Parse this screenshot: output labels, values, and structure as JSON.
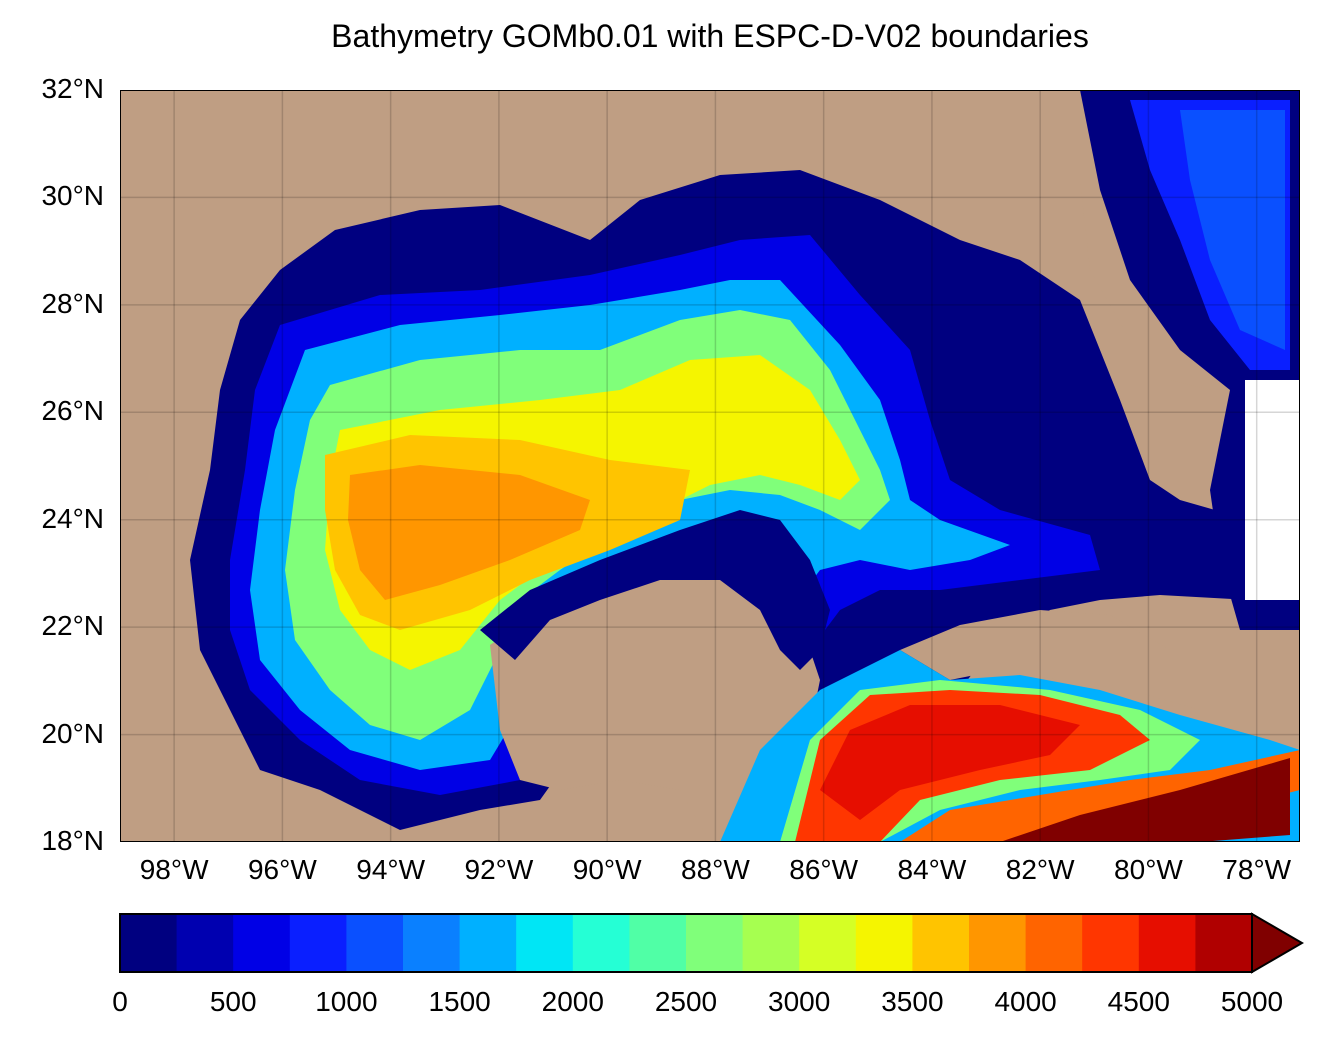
{
  "title": "Bathymetry GOMb0.01 with ESPC-D-V02 boundaries",
  "map": {
    "type": "filled-contour bathymetry map",
    "region": "Gulf of Mexico and western Caribbean",
    "lon_range": [
      -99,
      -77.2
    ],
    "lat_range": [
      18,
      32
    ],
    "lat_ticks": [
      "32°N",
      "30°N",
      "28°N",
      "26°N",
      "24°N",
      "22°N",
      "20°N",
      "18°N"
    ],
    "lon_ticks": [
      "98°W",
      "96°W",
      "94°W",
      "92°W",
      "90°W",
      "88°W",
      "86°W",
      "84°W",
      "82°W",
      "80°W",
      "78°W"
    ],
    "land_color": "#bf9e83",
    "grid": true
  },
  "colorbar": {
    "ticks": [
      "0",
      "500",
      "1000",
      "1500",
      "2000",
      "2500",
      "3000",
      "3500",
      "4000",
      "4500",
      "5000"
    ],
    "min": 0,
    "max": 5000,
    "step": 250,
    "extend": "max",
    "colors": [
      "#000080",
      "#0000b0",
      "#0000e6",
      "#0a1fff",
      "#0a50ff",
      "#0a80ff",
      "#00b0ff",
      "#00e6f5",
      "#25ffd5",
      "#50ffa6",
      "#80ff7a",
      "#a6ff50",
      "#d5ff25",
      "#f5f500",
      "#ffc400",
      "#ff9600",
      "#ff6400",
      "#ff3600",
      "#e60e00",
      "#b00000"
    ],
    "extend_color": "#800000"
  }
}
